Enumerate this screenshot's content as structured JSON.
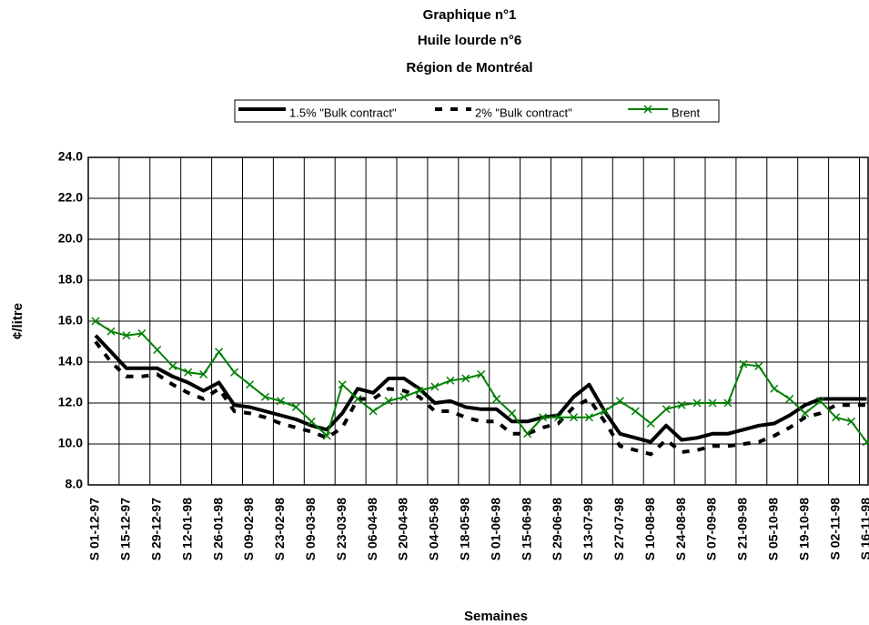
{
  "chart_data": {
    "type": "line",
    "title": [
      "Graphique n°1",
      "Huile lourde n°6",
      "Région de Montréal"
    ],
    "x_label": "Semaines",
    "y_label": "¢/litre",
    "categories": [
      "S 01-12-97",
      null,
      "S 15-12-97",
      null,
      "S 29-12-97",
      null,
      "S 12-01-98",
      null,
      "S 26-01-98",
      null,
      "S 09-02-98",
      null,
      "S 23-02-98",
      null,
      "S 09-03-98",
      null,
      "S 23-03-98",
      null,
      "S 06-04-98",
      null,
      "S 20-04-98",
      null,
      "S 04-05-98",
      null,
      "S 18-05-98",
      null,
      "S 01-06-98",
      null,
      "S 15-06-98",
      null,
      "S 29-06-98",
      null,
      "S 13-07-98",
      null,
      "S 27-07-98",
      null,
      "S 10-08-98",
      null,
      "S 24-08-98",
      null,
      "S 07-09-98",
      null,
      "S 21-09-98",
      null,
      "S 05-10-98",
      null,
      "S 19-10-98",
      null,
      "S 02-11-98",
      null,
      "S 16-11-98"
    ],
    "series": [
      {
        "name": "1.5% \"Bulk contract\"",
        "color": "#000000",
        "style": "solid",
        "values": [
          15.3,
          14.5,
          13.7,
          13.7,
          13.7,
          13.3,
          13.0,
          12.6,
          13.0,
          11.9,
          11.8,
          11.6,
          11.4,
          11.2,
          10.9,
          10.7,
          11.5,
          12.7,
          12.5,
          13.2,
          13.2,
          12.7,
          12.0,
          12.1,
          11.8,
          11.7,
          11.7,
          11.1,
          11.1,
          11.3,
          11.4,
          12.3,
          12.9,
          11.6,
          10.5,
          10.3,
          10.1,
          10.9,
          10.2,
          10.3,
          10.5,
          10.5,
          10.7,
          10.9,
          11.0,
          11.4,
          11.9,
          12.2,
          12.2,
          12.2,
          12.2
        ]
      },
      {
        "name": "2% \"Bulk contract\"",
        "color": "#000000",
        "style": "dashed",
        "values": [
          15.0,
          14.0,
          13.3,
          13.3,
          13.4,
          12.9,
          12.5,
          12.2,
          12.7,
          11.6,
          11.5,
          11.3,
          11.0,
          10.8,
          10.6,
          10.3,
          10.8,
          12.2,
          12.2,
          12.7,
          12.6,
          12.3,
          11.6,
          11.6,
          11.3,
          11.1,
          11.1,
          10.5,
          10.5,
          10.8,
          11.0,
          11.8,
          12.2,
          11.1,
          9.9,
          9.7,
          9.5,
          10.2,
          9.6,
          9.7,
          9.9,
          9.9,
          10.0,
          10.1,
          10.4,
          10.8,
          11.3,
          11.5,
          11.9,
          11.9,
          11.9
        ]
      },
      {
        "name": "Brent",
        "color": "#008000",
        "style": "marker",
        "values": [
          16.0,
          15.5,
          15.3,
          15.4,
          14.6,
          13.8,
          13.5,
          13.4,
          14.5,
          13.5,
          12.9,
          12.3,
          12.1,
          11.8,
          11.1,
          10.4,
          12.9,
          12.2,
          11.6,
          12.1,
          12.3,
          12.6,
          12.8,
          13.1,
          13.2,
          13.4,
          12.2,
          11.5,
          10.5,
          11.3,
          11.3,
          11.3,
          11.3,
          11.6,
          12.1,
          11.6,
          11.0,
          11.7,
          11.9,
          12.0,
          12.0,
          12.0,
          13.9,
          13.8,
          12.7,
          12.2,
          11.5,
          12.1,
          11.3,
          11.1,
          10.1
        ]
      }
    ],
    "ylim": [
      8,
      24
    ],
    "yticks": [
      {
        "value": 8,
        "label": "8.0"
      },
      {
        "value": 10,
        "label": "10.0"
      },
      {
        "value": 12,
        "label": "12.0"
      },
      {
        "value": 14,
        "label": "14.0"
      },
      {
        "value": 16,
        "label": "16.0"
      },
      {
        "value": 18,
        "label": "18.0"
      },
      {
        "value": 20,
        "label": "20.0"
      },
      {
        "value": 22,
        "label": "22.0"
      },
      {
        "value": 24,
        "label": "24.0"
      }
    ],
    "grid": true
  }
}
